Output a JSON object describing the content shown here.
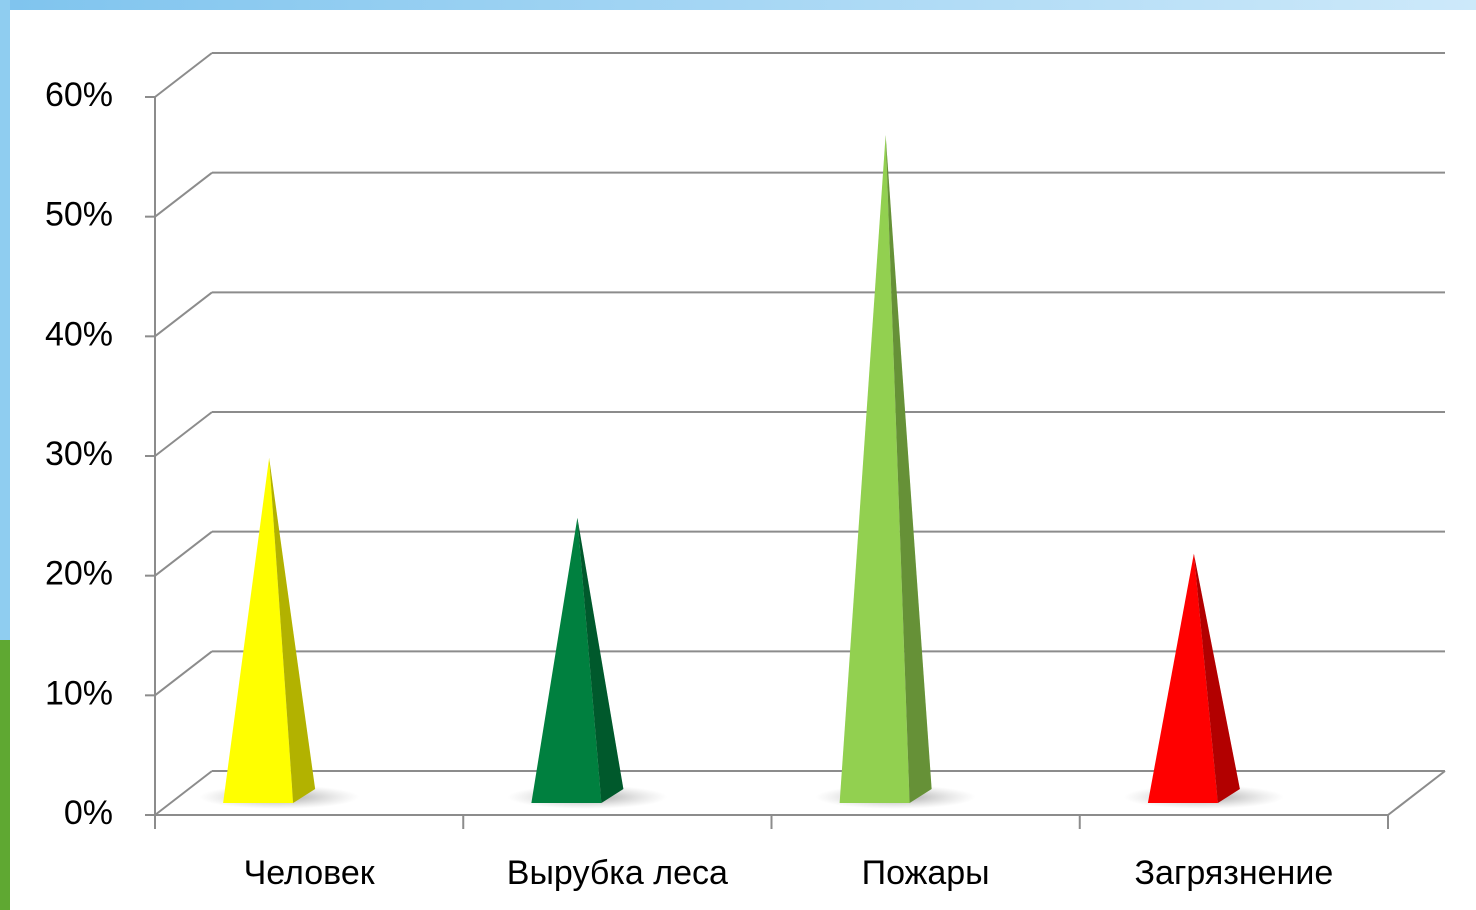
{
  "chart_data": {
    "type": "pyramid",
    "categories": [
      "Человек",
      "Вырубка леса",
      "Пожары",
      "Загрязнение"
    ],
    "values": [
      28,
      23,
      55,
      20
    ],
    "colors": [
      "#ffff00",
      "#00803f",
      "#92d050",
      "#ff0000"
    ],
    "ylim": [
      0,
      60
    ],
    "yticks": [
      {
        "value": 0,
        "label": "0%"
      },
      {
        "value": 10,
        "label": "10%"
      },
      {
        "value": 20,
        "label": "20%"
      },
      {
        "value": 30,
        "label": "30%"
      },
      {
        "value": 40,
        "label": "40%"
      },
      {
        "value": 50,
        "label": "50%"
      },
      {
        "value": 60,
        "label": "60%"
      }
    ],
    "grid": true
  }
}
